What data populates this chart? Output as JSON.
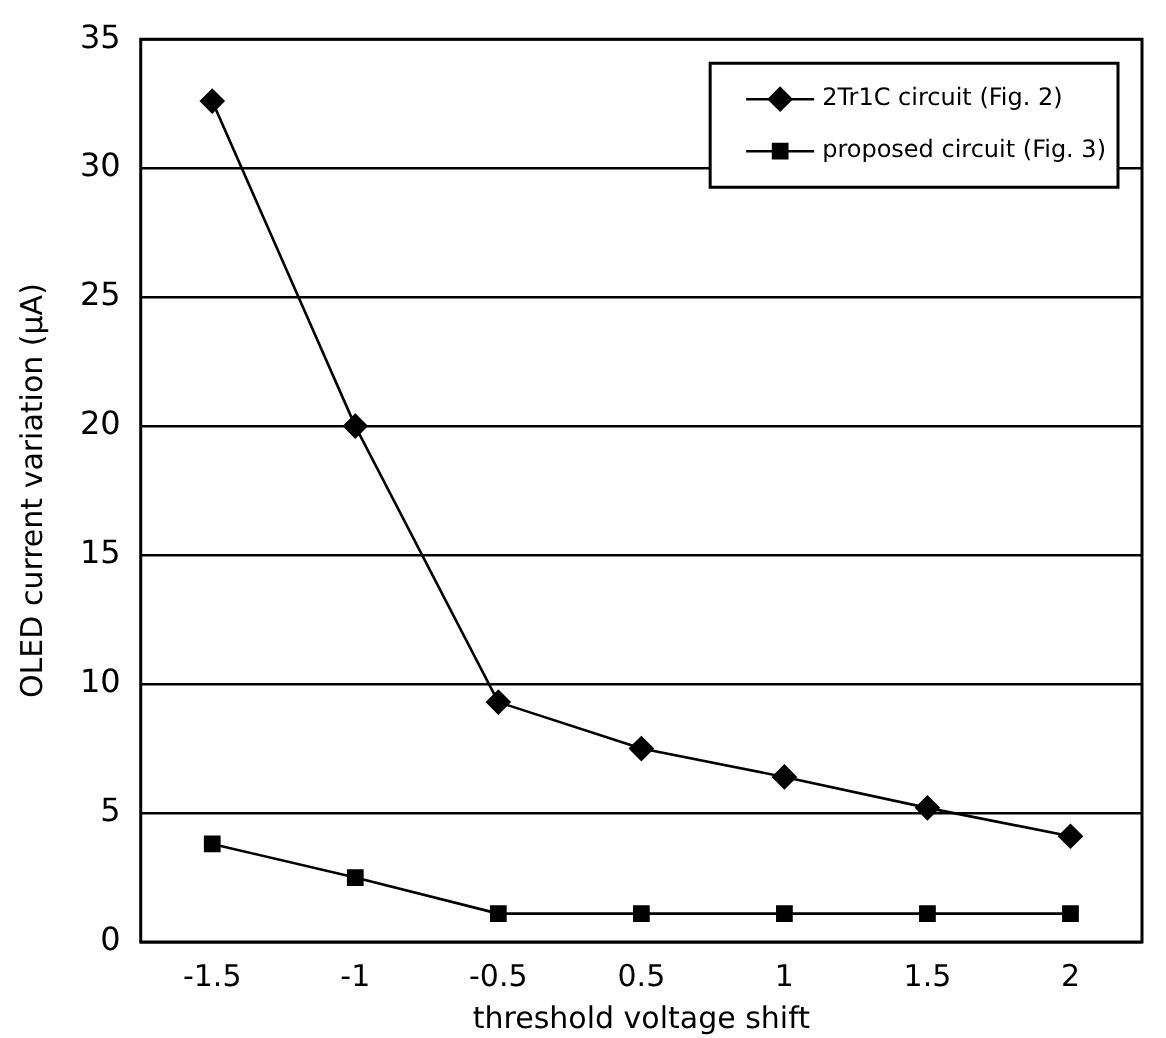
{
  "chart_data": {
    "type": "line",
    "xlabel": "threshold voltage shift",
    "ylabel": "OLED current variation (μA)",
    "categories": [
      "-1.5",
      "-1",
      "-0.5",
      "0.5",
      "1",
      "1.5",
      "2"
    ],
    "series": [
      {
        "name": "2Tr1C circuit (Fig. 2)",
        "color": "#000000",
        "marker": "diamond",
        "values": [
          32.6,
          20,
          9.3,
          7.5,
          6.4,
          5.2,
          4.1
        ]
      },
      {
        "name": "proposed circuit (Fig. 3)",
        "color": "#000000",
        "marker": "square",
        "values": [
          3.8,
          2.5,
          1.1,
          1.1,
          1.1,
          1.1,
          1.1
        ]
      }
    ],
    "ylim": [
      0,
      35
    ],
    "yticks": [
      0,
      5,
      10,
      15,
      20,
      25,
      30,
      35
    ],
    "grid": "y",
    "legend": "top right",
    "line_style": "solid"
  }
}
